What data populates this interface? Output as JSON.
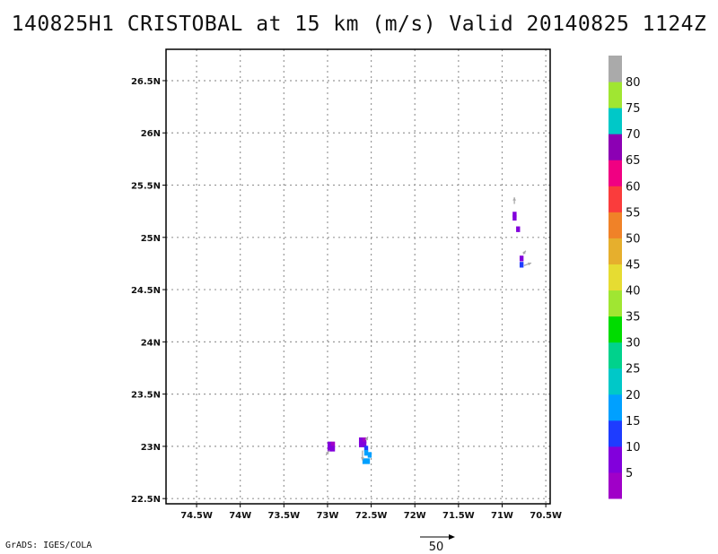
{
  "title": "140825H1 CRISTOBAL at 15 km (m/s) Valid 20140825 1124Z",
  "credit": "GrADS: IGES/COLA",
  "vector_scale_label": "50",
  "chart_data": {
    "type": "heatmap",
    "title": "140825H1 CRISTOBAL at 15 km (m/s) Valid 20140825 1124Z",
    "xlim": [
      -74.85,
      -70.45
    ],
    "ylim": [
      22.45,
      26.8
    ],
    "x_ticks": [
      -74.5,
      -74,
      -73.5,
      -73,
      -72.5,
      -72,
      -71.5,
      -71,
      -70.5
    ],
    "x_tick_labels": [
      "74.5W",
      "74W",
      "73.5W",
      "73W",
      "72.5W",
      "72W",
      "71.5W",
      "71W",
      "70.5W"
    ],
    "y_ticks": [
      22.5,
      23,
      23.5,
      24,
      24.5,
      25,
      25.5,
      26,
      26.5
    ],
    "y_tick_labels": [
      "22.5N",
      "23N",
      "23.5N",
      "24N",
      "24.5N",
      "25N",
      "25.5N",
      "26N",
      "26.5N"
    ],
    "grid": true,
    "colorbar": {
      "levels": [
        5,
        10,
        15,
        20,
        25,
        30,
        35,
        40,
        45,
        50,
        55,
        60,
        65,
        70,
        75,
        80
      ],
      "colors": [
        "#a000c8",
        "#8200dc",
        "#1e3cff",
        "#00a0ff",
        "#00c8c8",
        "#00d28c",
        "#00dc00",
        "#a0e632",
        "#e6dc32",
        "#e6af2d",
        "#f08228",
        "#fa3c3c",
        "#f00082",
        "#8c00b4",
        "#00c8c8",
        "#a0e632",
        "#aaaaaa"
      ]
    },
    "cells": [
      {
        "lon": -72.98,
        "lat": 23.02,
        "value": 6
      },
      {
        "lon": -72.94,
        "lat": 23.02,
        "value": 4
      },
      {
        "lon": -72.98,
        "lat": 22.98,
        "value": 5
      },
      {
        "lon": -72.94,
        "lat": 22.98,
        "value": 6
      },
      {
        "lon": -72.62,
        "lat": 23.06,
        "value": 6
      },
      {
        "lon": -72.58,
        "lat": 23.06,
        "value": 4
      },
      {
        "lon": -72.62,
        "lat": 23.02,
        "value": 6
      },
      {
        "lon": -72.58,
        "lat": 23.02,
        "value": 8
      },
      {
        "lon": -72.56,
        "lat": 22.98,
        "value": 14
      },
      {
        "lon": -72.56,
        "lat": 22.94,
        "value": 16
      },
      {
        "lon": -72.52,
        "lat": 22.92,
        "value": 17
      },
      {
        "lon": -72.58,
        "lat": 22.86,
        "value": 17
      },
      {
        "lon": -72.54,
        "lat": 22.86,
        "value": 16
      },
      {
        "lon": -70.86,
        "lat": 25.22,
        "value": 6
      },
      {
        "lon": -70.86,
        "lat": 25.19,
        "value": 5
      },
      {
        "lon": -70.82,
        "lat": 25.08,
        "value": 6
      },
      {
        "lon": -70.78,
        "lat": 24.8,
        "value": 8
      },
      {
        "lon": -70.78,
        "lat": 24.74,
        "value": 11
      }
    ],
    "vectors": [
      {
        "lon": -72.98,
        "lat": 22.96,
        "u": -5,
        "v": -7
      },
      {
        "lon": -72.6,
        "lat": 22.96,
        "u": 0,
        "v": -15
      },
      {
        "lon": -72.56,
        "lat": 23.06,
        "u": 3,
        "v": 5
      },
      {
        "lon": -70.86,
        "lat": 25.32,
        "u": 0,
        "v": 10
      },
      {
        "lon": -70.76,
        "lat": 24.84,
        "u": 4,
        "v": 5
      },
      {
        "lon": -70.75,
        "lat": 24.73,
        "u": 11,
        "v": 4
      }
    ]
  }
}
